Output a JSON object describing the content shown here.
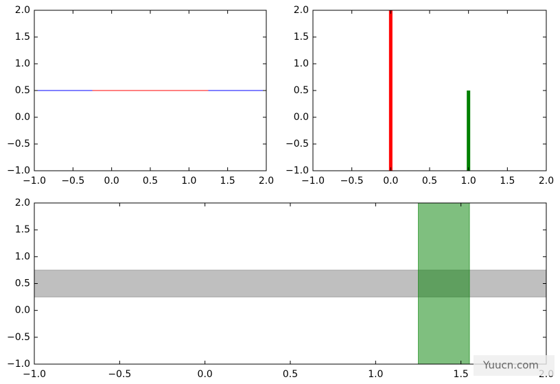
{
  "chart_data": [
    {
      "type": "hlines",
      "lines": [
        {
          "color": "#0000ff",
          "y": 0.5,
          "xrange": [
            -1,
            2
          ]
        },
        {
          "color": "#ff0000",
          "y": 0.5,
          "xrange": [
            -0.25,
            1.25
          ]
        }
      ],
      "xlim": [
        -1,
        2
      ],
      "ylim": [
        -1,
        2
      ],
      "xticks": [
        {
          "value": -1,
          "label": "−1.0"
        },
        {
          "value": -0.5,
          "label": "−0.5"
        },
        {
          "value": 0,
          "label": "0.0"
        },
        {
          "value": 0.5,
          "label": "0.5"
        },
        {
          "value": 1,
          "label": "1.0"
        },
        {
          "value": 1.5,
          "label": "1.5"
        },
        {
          "value": 2,
          "label": "2.0"
        }
      ],
      "yticks": [
        {
          "value": -1,
          "label": "−1.0"
        },
        {
          "value": -0.5,
          "label": "−0.5"
        },
        {
          "value": 0,
          "label": "0.0"
        },
        {
          "value": 0.5,
          "label": "0.5"
        },
        {
          "value": 1,
          "label": "1.0"
        },
        {
          "value": 1.5,
          "label": "1.5"
        },
        {
          "value": 2,
          "label": "2.0"
        }
      ]
    },
    {
      "type": "vlines",
      "lines": [
        {
          "color": "#ff0000",
          "x": 0,
          "yrange": [
            -1,
            2
          ]
        },
        {
          "color": "#008000",
          "x": 1,
          "yrange": [
            -1,
            0.5
          ]
        }
      ],
      "xlim": [
        -1,
        2
      ],
      "ylim": [
        -1,
        2
      ],
      "xticks": [
        {
          "value": -1,
          "label": "−1.0"
        },
        {
          "value": -0.5,
          "label": "−0.5"
        },
        {
          "value": 0,
          "label": "0.0"
        },
        {
          "value": 0.5,
          "label": "0.5"
        },
        {
          "value": 1,
          "label": "1.0"
        },
        {
          "value": 1.5,
          "label": "1.5"
        },
        {
          "value": 2,
          "label": "2.0"
        }
      ],
      "yticks": [
        {
          "value": -1,
          "label": "−1.0"
        },
        {
          "value": -0.5,
          "label": "−0.5"
        },
        {
          "value": 0,
          "label": "0.0"
        },
        {
          "value": 0.5,
          "label": "0.5"
        },
        {
          "value": 1,
          "label": "1.0"
        },
        {
          "value": 1.5,
          "label": "1.5"
        },
        {
          "value": 2,
          "label": "2.0"
        }
      ]
    },
    {
      "type": "spans",
      "spans": [
        {
          "color": "#808080",
          "axis": "y",
          "range": [
            0.25,
            0.75
          ]
        },
        {
          "color": "#008000",
          "axis": "x",
          "range": [
            1.25,
            1.55
          ]
        }
      ],
      "xlim": [
        -1,
        2
      ],
      "ylim": [
        -1,
        2
      ],
      "xticks": [
        {
          "value": -1,
          "label": "−1.0"
        },
        {
          "value": -0.5,
          "label": "−0.5"
        },
        {
          "value": 0,
          "label": "0.0"
        },
        {
          "value": 0.5,
          "label": "0.5"
        },
        {
          "value": 1,
          "label": "1.0"
        },
        {
          "value": 1.5,
          "label": "1.5"
        },
        {
          "value": 2,
          "label": "2.0"
        }
      ],
      "yticks": [
        {
          "value": -1,
          "label": "−1.0"
        },
        {
          "value": -0.5,
          "label": "−0.5"
        },
        {
          "value": 0,
          "label": "0.0"
        },
        {
          "value": 0.5,
          "label": "0.5"
        },
        {
          "value": 1,
          "label": "1.0"
        },
        {
          "value": 1.5,
          "label": "1.5"
        },
        {
          "value": 2,
          "label": "2.0"
        }
      ]
    }
  ],
  "watermark": "Yuucn.com"
}
